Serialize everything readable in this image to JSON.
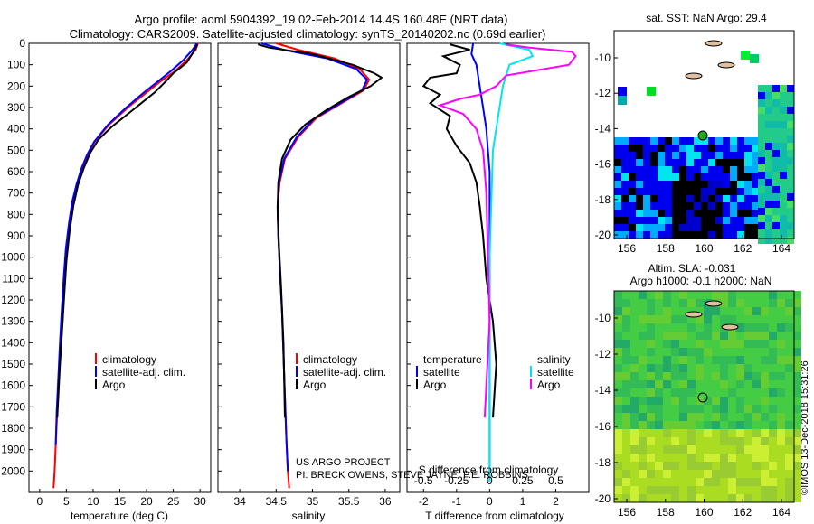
{
  "header": {
    "line1": "Argo profile: aoml 5904392_19 02-Feb-2014 14.4S 160.48E (NRT data)",
    "line2": "Climatology: CARS2009. Satellite-adjusted climatology: synTS_20140202.nc (0.69d earlier)"
  },
  "colors": {
    "clim": "#ff0000",
    "sat": "#0000ff",
    "argo": "#000000",
    "sal_sat": "#00e5ee",
    "sal_argo": "#ff00ff"
  },
  "depth_axis": {
    "ylim": [
      2100,
      0
    ],
    "ticks": [
      "0",
      "100",
      "200",
      "300",
      "400",
      "500",
      "600",
      "700",
      "800",
      "900",
      "1000",
      "1100",
      "1200",
      "1300",
      "1400",
      "1500",
      "1600",
      "1700",
      "1800",
      "1900",
      "2000"
    ]
  },
  "chart_data": [
    {
      "type": "line",
      "id": "temperature",
      "xlabel": "temperature (deg C)",
      "xlim": [
        -2,
        32
      ],
      "xticks": [
        0,
        5,
        10,
        15,
        20,
        25,
        30
      ],
      "xtick_labels": [
        "0",
        "5",
        "10",
        "15",
        "20",
        "25",
        "30"
      ],
      "legend": [
        "climatology",
        "satellite-adj. clim.",
        "Argo"
      ],
      "series": [
        {
          "name": "climatology",
          "color": "clim",
          "x": [
            29.6,
            29.2,
            27.5,
            25.3,
            22.5,
            20.0,
            16.5,
            13.0,
            10.3,
            9.0,
            8.0,
            7.0,
            6.2,
            5.6,
            5.0,
            4.6,
            4.2,
            3.9,
            3.6,
            3.3,
            3.0,
            2.8,
            2.6
          ],
          "depth": [
            0,
            30,
            80,
            130,
            180,
            230,
            300,
            380,
            460,
            520,
            580,
            660,
            740,
            840,
            960,
            1100,
            1260,
            1400,
            1560,
            1720,
            1880,
            2000,
            2080
          ]
        },
        {
          "name": "satellite-adj. clim.",
          "color": "sat",
          "x": [
            29.4,
            28.6,
            26.8,
            24.5,
            22.0,
            19.5,
            16.2,
            12.8,
            10.2,
            8.9,
            7.9,
            6.9,
            6.1,
            5.5,
            4.9,
            4.5,
            4.1,
            3.8,
            3.5,
            3.2,
            3.0
          ],
          "depth": [
            0,
            30,
            80,
            130,
            180,
            230,
            300,
            380,
            460,
            520,
            580,
            660,
            740,
            840,
            960,
            1100,
            1260,
            1400,
            1560,
            1720,
            1880
          ]
        },
        {
          "name": "Argo",
          "color": "argo",
          "x": [
            29.5,
            29.0,
            27.5,
            25.0,
            23.5,
            21.5,
            19.0,
            16.5,
            13.5,
            11.0,
            9.5,
            8.3,
            7.2,
            6.3,
            5.6,
            5.0,
            4.6,
            4.2,
            3.8,
            3.5,
            3.3
          ],
          "depth": [
            5,
            30,
            90,
            140,
            180,
            230,
            280,
            330,
            390,
            450,
            510,
            580,
            660,
            760,
            880,
            1020,
            1180,
            1340,
            1500,
            1650,
            1750
          ]
        }
      ]
    },
    {
      "type": "line",
      "id": "salinity",
      "xlabel": "salinity",
      "xlim": [
        33.7,
        36.2
      ],
      "xticks": [
        34,
        34.5,
        35,
        35.5,
        36
      ],
      "xtick_labels": [
        "34",
        "34.5",
        "35",
        "35.5",
        "36"
      ],
      "legend": [
        "climatology",
        "satellite-adj. clim.",
        "Argo"
      ],
      "series": [
        {
          "name": "climatology",
          "color": "clim",
          "x": [
            34.5,
            34.8,
            35.3,
            35.65,
            35.78,
            35.7,
            35.4,
            35.05,
            34.8,
            34.62,
            34.55,
            34.52,
            34.53,
            34.55,
            34.58,
            34.6,
            34.62,
            34.64,
            34.66,
            34.68
          ],
          "depth": [
            0,
            30,
            70,
            120,
            170,
            220,
            280,
            350,
            440,
            540,
            650,
            760,
            900,
            1050,
            1250,
            1450,
            1650,
            1850,
            2000,
            2080
          ]
        },
        {
          "name": "satellite-adj. clim.",
          "color": "sat",
          "x": [
            34.3,
            34.6,
            35.2,
            35.6,
            35.75,
            35.68,
            35.38,
            35.03,
            34.78,
            34.61,
            34.54,
            34.52,
            34.53,
            34.55,
            34.58,
            34.6,
            34.62,
            34.64,
            34.66
          ],
          "depth": [
            0,
            30,
            70,
            120,
            170,
            220,
            280,
            350,
            440,
            540,
            650,
            760,
            900,
            1050,
            1250,
            1450,
            1650,
            1850,
            2000
          ]
        },
        {
          "name": "Argo",
          "color": "argo",
          "x": [
            34.25,
            34.4,
            35.0,
            35.55,
            35.85,
            35.95,
            35.8,
            35.5,
            35.2,
            34.9,
            34.7,
            34.58,
            34.53,
            34.52,
            34.54,
            34.57,
            34.6,
            34.62
          ],
          "depth": [
            5,
            20,
            50,
            100,
            140,
            160,
            200,
            250,
            310,
            380,
            450,
            540,
            650,
            780,
            950,
            1150,
            1400,
            1750
          ]
        }
      ]
    },
    {
      "type": "line",
      "id": "difference",
      "xlabel": "T difference from climatology",
      "xlabel_top": "S difference from climatology",
      "xlim": [
        -2.5,
        3
      ],
      "xticks": [
        -2,
        -1,
        0,
        1,
        2
      ],
      "xtick_labels": [
        "-2",
        "-1",
        "0",
        "1",
        "2"
      ],
      "xticks_top": [
        -2,
        -1,
        0,
        1,
        2
      ],
      "xtick_labels_top": [
        "-0.5",
        "-0.25",
        "0",
        "0.25",
        "0.5"
      ],
      "legend_t": [
        "temperature",
        "satellite",
        "Argo"
      ],
      "legend_s": [
        "salinity",
        "satellite",
        "Argo"
      ],
      "series": [
        {
          "name": "T satellite",
          "color": "sat",
          "x": [
            -0.5,
            -0.55,
            -0.4,
            -0.3,
            -0.2,
            -0.1,
            -0.05,
            0,
            0
          ],
          "depth": [
            0,
            50,
            100,
            200,
            300,
            400,
            500,
            600,
            2050
          ]
        },
        {
          "name": "T Argo",
          "color": "argo",
          "x": [
            -1.2,
            -0.6,
            -1.4,
            -0.9,
            -1.0,
            -1.8,
            -2.0,
            -1.5,
            -1.8,
            -1.2,
            -1.3,
            -1.0,
            -0.6,
            -0.4,
            -0.3,
            -0.2,
            -0.1,
            0.1,
            0.2,
            0.1
          ],
          "depth": [
            5,
            30,
            60,
            100,
            140,
            160,
            200,
            240,
            280,
            340,
            400,
            480,
            560,
            650,
            760,
            900,
            1100,
            1300,
            1500,
            1750
          ]
        },
        {
          "name": "S satellite",
          "color": "sal_sat",
          "x": [
            0.3,
            1.2,
            1.3,
            0.6,
            0.4,
            0.1,
            0,
            0
          ],
          "depth": [
            0,
            30,
            60,
            100,
            200,
            500,
            1000,
            2050
          ]
        },
        {
          "name": "S Argo",
          "color": "sal_argo",
          "x": [
            0.5,
            1.2,
            2.5,
            2.6,
            2.4,
            0.5,
            0.2,
            -0.3,
            -0.9,
            -1.5,
            -0.8,
            -0.4,
            -0.2,
            -0.1,
            -0.05,
            0,
            -0.1,
            -0.15
          ],
          "depth": [
            5,
            20,
            40,
            60,
            100,
            150,
            200,
            240,
            260,
            290,
            330,
            400,
            500,
            700,
            1000,
            1300,
            1600,
            1750
          ]
        }
      ]
    }
  ],
  "sst_map": {
    "title": "sat. SST: NaN Argo: 29.4",
    "xticks": [
      "156",
      "158",
      "160",
      "162",
      "164"
    ],
    "yticks": [
      "-10",
      "-12",
      "-14",
      "-16",
      "-18",
      "-20"
    ]
  },
  "sla_map": {
    "title1": "Altim. SLA: -0.031",
    "title2": "Argo h1000: -0.1 h2000: NaN",
    "xticks": [
      "156",
      "158",
      "160",
      "162",
      "164"
    ],
    "yticks": [
      "-10",
      "-12",
      "-14",
      "-16",
      "-18",
      "-20"
    ]
  },
  "credits": {
    "project": "US ARGO PROJECT",
    "pi": "PI: BRECK OWENS, STEVE JAYNE, P.E. ROBBINS",
    "imos": "©IMOS 13-Dec-2018 15:31:26"
  }
}
